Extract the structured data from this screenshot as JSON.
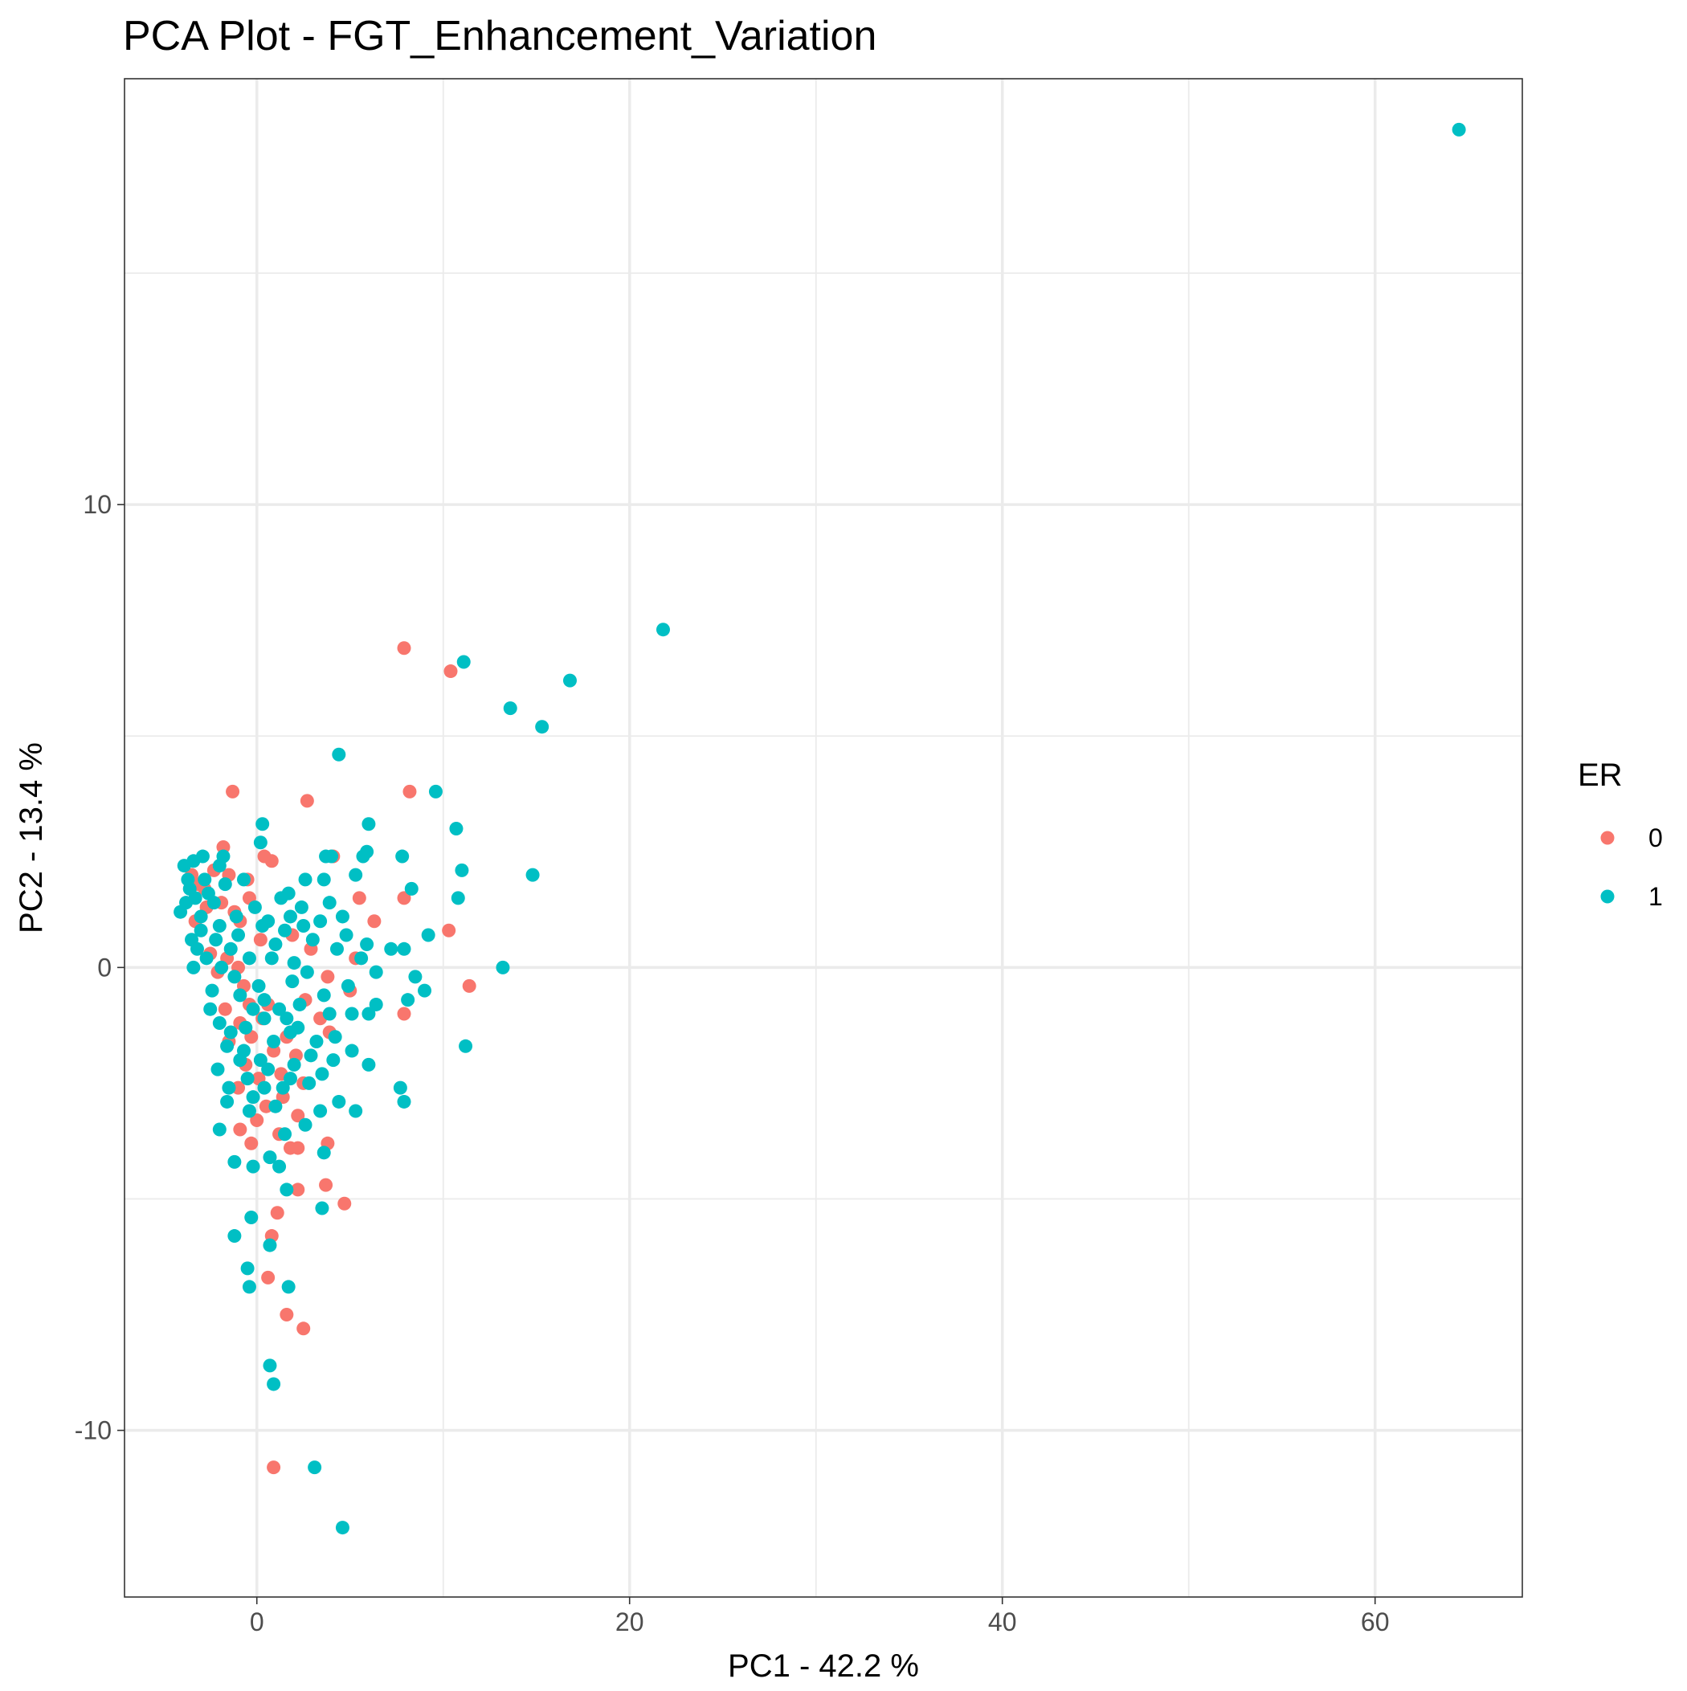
{
  "chart_data": {
    "type": "scatter",
    "title": "PCA Plot -  FGT_Enhancement_Variation",
    "xlabel": "PC1 -  42.2 %",
    "ylabel": "PC2 -  13.4 %",
    "xlim": [
      -7.1,
      67.9
    ],
    "ylim": [
      -13.6,
      19.2
    ],
    "x_ticks": [
      0,
      20,
      40,
      60
    ],
    "x_tick_labels": [
      "0",
      "20",
      "40",
      "60"
    ],
    "y_ticks": [
      -10,
      0,
      10
    ],
    "y_tick_labels": [
      "-10",
      "0",
      "10"
    ],
    "x_minor_ticks": [
      10,
      30,
      50
    ],
    "y_minor_ticks": [
      -5,
      5,
      15
    ],
    "grid": true,
    "legend": {
      "title": "ER",
      "placement": "right",
      "entries": [
        "0",
        "1"
      ]
    },
    "colors": {
      "0": "#F8766D",
      "1": "#00BFC4"
    },
    "series": [
      {
        "name": "0",
        "color": "#F8766D",
        "points": [
          [
            7.9,
            6.9
          ],
          [
            10.4,
            6.4
          ],
          [
            8.2,
            3.8
          ],
          [
            2.7,
            3.6
          ],
          [
            -1.3,
            3.8
          ],
          [
            -1.8,
            2.6
          ],
          [
            0.4,
            2.4
          ],
          [
            0.8,
            2.3
          ],
          [
            -2.3,
            2.1
          ],
          [
            -3.5,
            2.0
          ],
          [
            -1.5,
            2.0
          ],
          [
            -0.5,
            1.9
          ],
          [
            -3.2,
            1.8
          ],
          [
            -2.8,
            1.7
          ],
          [
            -0.4,
            1.5
          ],
          [
            -1.9,
            1.4
          ],
          [
            -1.2,
            1.2
          ],
          [
            7.9,
            1.5
          ],
          [
            5.5,
            1.5
          ],
          [
            -3.3,
            1.0
          ],
          [
            -0.9,
            1.0
          ],
          [
            6.3,
            1.0
          ],
          [
            10.3,
            0.8
          ],
          [
            2.9,
            0.4
          ],
          [
            -2.5,
            0.3
          ],
          [
            -1.6,
            0.2
          ],
          [
            5.3,
            0.2
          ],
          [
            -1.0,
            0.0
          ],
          [
            -2.1,
            -0.1
          ],
          [
            3.8,
            -0.2
          ],
          [
            -0.7,
            -0.4
          ],
          [
            11.4,
            -0.4
          ],
          [
            5.0,
            -0.5
          ],
          [
            2.6,
            -0.7
          ],
          [
            0.6,
            -0.8
          ],
          [
            -1.7,
            -0.9
          ],
          [
            7.9,
            -1.0
          ],
          [
            0.3,
            -1.1
          ],
          [
            -0.9,
            -1.2
          ],
          [
            3.9,
            -1.4
          ],
          [
            1.6,
            -1.5
          ],
          [
            -0.3,
            -1.5
          ],
          [
            -1.5,
            -1.6
          ],
          [
            0.9,
            -1.8
          ],
          [
            2.1,
            -1.9
          ],
          [
            -0.6,
            -2.1
          ],
          [
            1.3,
            -2.3
          ],
          [
            0.1,
            -2.4
          ],
          [
            2.5,
            -2.5
          ],
          [
            -1.0,
            -2.6
          ],
          [
            1.4,
            -2.8
          ],
          [
            0.5,
            -3.0
          ],
          [
            2.2,
            -3.2
          ],
          [
            0.0,
            -3.3
          ],
          [
            -0.9,
            -3.5
          ],
          [
            1.2,
            -3.6
          ],
          [
            -0.3,
            -3.8
          ],
          [
            3.8,
            -3.8
          ],
          [
            1.8,
            -3.9
          ],
          [
            2.2,
            -3.9
          ],
          [
            3.7,
            -4.7
          ],
          [
            2.2,
            -4.8
          ],
          [
            4.7,
            -5.1
          ],
          [
            1.1,
            -5.3
          ],
          [
            0.8,
            -5.8
          ],
          [
            0.6,
            -6.7
          ],
          [
            1.6,
            -7.5
          ],
          [
            2.5,
            -7.8
          ],
          [
            0.9,
            -10.8
          ],
          [
            -0.4,
            -0.8
          ],
          [
            3.4,
            -1.1
          ],
          [
            -2.7,
            1.3
          ],
          [
            0.2,
            0.6
          ],
          [
            1.9,
            0.7
          ],
          [
            4.1,
            2.4
          ]
        ]
      },
      {
        "name": "1",
        "color": "#00BFC4",
        "points": [
          [
            64.5,
            18.1
          ],
          [
            21.8,
            7.3
          ],
          [
            11.1,
            6.6
          ],
          [
            16.8,
            6.2
          ],
          [
            13.6,
            5.6
          ],
          [
            15.3,
            5.2
          ],
          [
            4.4,
            4.6
          ],
          [
            9.6,
            3.8
          ],
          [
            6.0,
            3.1
          ],
          [
            10.7,
            3.0
          ],
          [
            0.3,
            3.1
          ],
          [
            0.2,
            2.7
          ],
          [
            3.7,
            2.4
          ],
          [
            4.0,
            2.4
          ],
          [
            5.9,
            2.5
          ],
          [
            7.8,
            2.4
          ],
          [
            5.7,
            2.4
          ],
          [
            -2.9,
            2.4
          ],
          [
            -1.8,
            2.4
          ],
          [
            -3.4,
            2.3
          ],
          [
            11.0,
            2.1
          ],
          [
            14.8,
            2.0
          ],
          [
            5.3,
            2.0
          ],
          [
            2.6,
            1.9
          ],
          [
            -0.7,
            1.9
          ],
          [
            8.3,
            1.7
          ],
          [
            10.8,
            1.5
          ],
          [
            3.6,
            1.9
          ],
          [
            1.7,
            1.6
          ],
          [
            -3.9,
            2.2
          ],
          [
            -3.6,
            1.7
          ],
          [
            -3.8,
            1.4
          ],
          [
            -4.1,
            1.2
          ],
          [
            -3.0,
            1.1
          ],
          [
            -2.0,
            0.9
          ],
          [
            -1.0,
            0.7
          ],
          [
            -3.5,
            0.6
          ],
          [
            -3.2,
            0.4
          ],
          [
            -2.7,
            0.2
          ],
          [
            -3.4,
            0.0
          ],
          [
            9.2,
            0.7
          ],
          [
            7.9,
            0.4
          ],
          [
            7.2,
            0.4
          ],
          [
            5.9,
            0.5
          ],
          [
            4.3,
            0.4
          ],
          [
            13.2,
            0.0
          ],
          [
            6.4,
            -0.1
          ],
          [
            8.5,
            -0.2
          ],
          [
            9.0,
            -0.5
          ],
          [
            8.1,
            -0.7
          ],
          [
            6.4,
            -0.8
          ],
          [
            6.0,
            -1.0
          ],
          [
            5.1,
            -1.0
          ],
          [
            3.9,
            -1.0
          ],
          [
            -2.5,
            -0.9
          ],
          [
            -2.0,
            -1.2
          ],
          [
            -1.4,
            -1.4
          ],
          [
            -0.6,
            -1.3
          ],
          [
            0.4,
            -1.1
          ],
          [
            1.8,
            -1.4
          ],
          [
            3.2,
            -1.6
          ],
          [
            11.2,
            -1.7
          ],
          [
            5.1,
            -1.8
          ],
          [
            6.0,
            -2.1
          ],
          [
            3.5,
            -2.3
          ],
          [
            -0.9,
            -2.0
          ],
          [
            -2.1,
            -2.2
          ],
          [
            -1.5,
            -2.6
          ],
          [
            0.4,
            -2.6
          ],
          [
            1.8,
            -2.4
          ],
          [
            2.8,
            -2.5
          ],
          [
            3.4,
            -3.1
          ],
          [
            4.4,
            -2.9
          ],
          [
            5.3,
            -3.1
          ],
          [
            7.7,
            -2.6
          ],
          [
            7.9,
            -2.9
          ],
          [
            -2.0,
            -3.5
          ],
          [
            -1.2,
            -4.2
          ],
          [
            -0.2,
            -4.3
          ],
          [
            0.7,
            -4.1
          ],
          [
            1.2,
            -4.3
          ],
          [
            3.6,
            -4.0
          ],
          [
            1.6,
            -4.8
          ],
          [
            3.5,
            -5.2
          ],
          [
            -0.3,
            -5.4
          ],
          [
            -1.2,
            -5.8
          ],
          [
            0.7,
            -6.0
          ],
          [
            -0.5,
            -6.5
          ],
          [
            -0.4,
            -6.9
          ],
          [
            1.7,
            -6.9
          ],
          [
            0.7,
            -8.6
          ],
          [
            0.9,
            -9.0
          ],
          [
            3.1,
            -10.8
          ],
          [
            4.6,
            -12.1
          ],
          [
            -2.3,
            1.4
          ],
          [
            -1.1,
            1.1
          ],
          [
            0.6,
            1.0
          ],
          [
            1.5,
            0.8
          ],
          [
            2.4,
            1.3
          ],
          [
            3.4,
            1.0
          ],
          [
            4.6,
            1.1
          ],
          [
            -0.4,
            0.2
          ],
          [
            0.8,
            0.2
          ],
          [
            1.9,
            -0.3
          ],
          [
            2.7,
            -0.1
          ],
          [
            -1.4,
            0.4
          ],
          [
            -0.9,
            -0.6
          ],
          [
            0.1,
            -0.4
          ],
          [
            1.2,
            -0.9
          ],
          [
            2.3,
            -0.8
          ],
          [
            -2.4,
            -0.5
          ],
          [
            -1.9,
            0.0
          ],
          [
            -0.2,
            -0.9
          ],
          [
            0.9,
            -1.6
          ],
          [
            2.9,
            -1.9
          ],
          [
            4.2,
            -1.5
          ],
          [
            -1.6,
            -2.9
          ],
          [
            -0.4,
            -3.1
          ],
          [
            1.5,
            -3.6
          ],
          [
            2.6,
            -3.4
          ],
          [
            0.2,
            -2.0
          ],
          [
            -0.5,
            -2.4
          ],
          [
            1.0,
            0.5
          ],
          [
            2.0,
            0.1
          ],
          [
            3.0,
            0.6
          ],
          [
            -3.7,
            1.9
          ],
          [
            -2.6,
            1.6
          ],
          [
            -1.7,
            1.8
          ],
          [
            -0.1,
            1.3
          ],
          [
            1.3,
            1.5
          ],
          [
            2.5,
            0.9
          ],
          [
            3.9,
            1.4
          ],
          [
            4.8,
            0.7
          ],
          [
            5.6,
            0.2
          ],
          [
            4.9,
            -0.4
          ],
          [
            -3.0,
            0.8
          ],
          [
            -2.2,
            0.6
          ],
          [
            -1.2,
            -0.2
          ],
          [
            0.4,
            -0.7
          ],
          [
            1.6,
            -1.1
          ],
          [
            2.2,
            -1.3
          ],
          [
            3.6,
            -0.6
          ],
          [
            -1.6,
            -1.7
          ],
          [
            -0.7,
            -1.8
          ],
          [
            0.6,
            -2.2
          ],
          [
            1.4,
            -2.6
          ],
          [
            -2.8,
            1.9
          ],
          [
            -2.0,
            2.2
          ],
          [
            -3.3,
            1.5
          ],
          [
            1.0,
            -3.0
          ],
          [
            2.0,
            -2.1
          ],
          [
            -0.2,
            -2.8
          ],
          [
            0.3,
            0.9
          ],
          [
            1.8,
            1.1
          ],
          [
            4.1,
            -2.0
          ]
        ]
      }
    ]
  }
}
